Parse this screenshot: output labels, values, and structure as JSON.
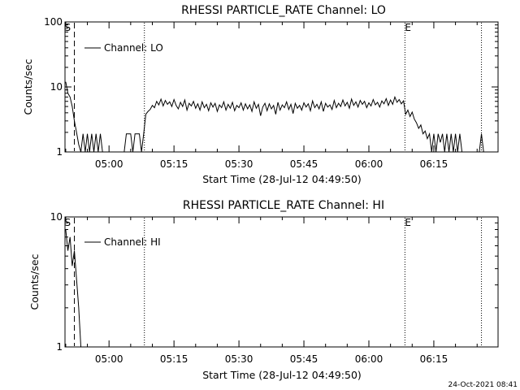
{
  "chart_data": [
    {
      "type": "line",
      "title": "RHESSI PARTICLE_RATE Channel: LO",
      "xlabel": "Start Time (28-Jul-12 04:49:50)",
      "ylabel": "Counts/sec",
      "yscale": "log",
      "ylim": [
        1,
        100
      ],
      "xlim": [
        "04:49:50",
        "06:29:50"
      ],
      "x_ticks": [
        "05:00",
        "05:15",
        "05:30",
        "05:45",
        "06:00",
        "06:15"
      ],
      "y_ticks": [
        "1",
        "10",
        "100"
      ],
      "legend": {
        "position": "top-left",
        "entries": [
          "Channel: LO"
        ]
      },
      "markers": [
        {
          "label": "S",
          "time": "04:52:00",
          "style": "dashed"
        },
        {
          "label": "",
          "time": "05:08:10",
          "style": "dotted"
        },
        {
          "label": "E",
          "time": "06:08:20",
          "style": "dotted"
        },
        {
          "label": "",
          "time": "06:26:00",
          "style": "dotted"
        }
      ],
      "series": [
        {
          "name": "Channel: LO",
          "points": [
            [
              "04:50:00",
              12
            ],
            [
              "04:50:30",
              8
            ],
            [
              "04:51:00",
              7
            ],
            [
              "04:51:30",
              5
            ],
            [
              "04:52:00",
              3
            ],
            [
              "04:52:30",
              2
            ],
            [
              "04:53:00",
              1.3
            ],
            [
              "04:53:30",
              1
            ],
            [
              "04:54:00",
              1.9
            ],
            [
              "04:54:30",
              1
            ],
            [
              "04:55:00",
              1.9
            ],
            [
              "04:55:30",
              1
            ],
            [
              "04:56:00",
              1.9
            ],
            [
              "04:56:30",
              1
            ],
            [
              "04:57:00",
              1.9
            ],
            [
              "04:57:30",
              1
            ],
            [
              "04:58:00",
              1.9
            ],
            [
              "04:58:30",
              1
            ],
            [
              "05:03:30",
              1
            ],
            [
              "05:04:00",
              1.9
            ],
            [
              "05:05:00",
              1.9
            ],
            [
              "05:05:30",
              1
            ],
            [
              "05:06:00",
              1.9
            ],
            [
              "05:07:00",
              1.9
            ],
            [
              "05:07:30",
              1
            ],
            [
              "05:08:00",
              1.9
            ],
            [
              "05:08:30",
              3.8
            ],
            [
              "05:09:00",
              4.2
            ],
            [
              "05:09:30",
              4.5
            ],
            [
              "05:10:00",
              5.2
            ],
            [
              "05:10:30",
              4.8
            ],
            [
              "05:11:00",
              6
            ],
            [
              "05:11:30",
              5.3
            ],
            [
              "05:12:00",
              6.5
            ],
            [
              "05:12:30",
              5.1
            ],
            [
              "05:13:00",
              6.2
            ],
            [
              "05:13:30",
              5.4
            ],
            [
              "05:14:00",
              5.9
            ],
            [
              "05:14:30",
              5
            ],
            [
              "05:15:00",
              6.4
            ],
            [
              "05:15:30",
              5.2
            ],
            [
              "05:16:00",
              4.6
            ],
            [
              "05:16:30",
              5.8
            ],
            [
              "05:17:00",
              5
            ],
            [
              "05:17:30",
              6.3
            ],
            [
              "05:18:00",
              4.4
            ],
            [
              "05:18:30",
              5.6
            ],
            [
              "05:19:00",
              5.1
            ],
            [
              "05:19:30",
              6
            ],
            [
              "05:20:00",
              4.7
            ],
            [
              "05:20:30",
              5.5
            ],
            [
              "05:21:00",
              4.4
            ],
            [
              "05:21:30",
              5.9
            ],
            [
              "05:22:00",
              4.8
            ],
            [
              "05:22:30",
              5.4
            ],
            [
              "05:23:00",
              4.3
            ],
            [
              "05:23:30",
              5.7
            ],
            [
              "05:24:00",
              4.9
            ],
            [
              "05:24:30",
              5.6
            ],
            [
              "05:25:00",
              4.2
            ],
            [
              "05:25:30",
              5.3
            ],
            [
              "05:26:00",
              4.8
            ],
            [
              "05:26:30",
              5.9
            ],
            [
              "05:27:00",
              4.4
            ],
            [
              "05:27:30",
              5.4
            ],
            [
              "05:28:00",
              4.7
            ],
            [
              "05:28:30",
              5.8
            ],
            [
              "05:29:00",
              4.3
            ],
            [
              "05:29:30",
              5.2
            ],
            [
              "05:30:00",
              4.8
            ],
            [
              "05:30:30",
              5.7
            ],
            [
              "05:31:00",
              4.4
            ],
            [
              "05:31:30",
              5.5
            ],
            [
              "05:32:00",
              4.6
            ],
            [
              "05:32:30",
              5.3
            ],
            [
              "05:33:00",
              4.2
            ],
            [
              "05:33:30",
              5.9
            ],
            [
              "05:34:00",
              4.7
            ],
            [
              "05:34:30",
              5.4
            ],
            [
              "05:35:00",
              3.6
            ],
            [
              "05:35:30",
              4.9
            ],
            [
              "05:36:00",
              5.6
            ],
            [
              "05:36:30",
              4.3
            ],
            [
              "05:37:00",
              5.5
            ],
            [
              "05:37:30",
              4.6
            ],
            [
              "05:38:00",
              5.2
            ],
            [
              "05:38:30",
              3.8
            ],
            [
              "05:39:00",
              5.8
            ],
            [
              "05:39:30",
              4.4
            ],
            [
              "05:40:00",
              5.3
            ],
            [
              "05:40:30",
              4.8
            ],
            [
              "05:41:00",
              5.9
            ],
            [
              "05:41:30",
              4.5
            ],
            [
              "05:42:00",
              5.4
            ],
            [
              "05:42:30",
              3.9
            ],
            [
              "05:43:00",
              5.6
            ],
            [
              "05:43:30",
              4.7
            ],
            [
              "05:44:00",
              5.2
            ],
            [
              "05:44:30",
              4.4
            ],
            [
              "05:45:00",
              5.7
            ],
            [
              "05:45:30",
              4.9
            ],
            [
              "05:46:00",
              5.5
            ],
            [
              "05:46:30",
              4.3
            ],
            [
              "05:47:00",
              6.1
            ],
            [
              "05:47:30",
              4.8
            ],
            [
              "05:48:00",
              5.4
            ],
            [
              "05:48:30",
              4.6
            ],
            [
              "05:49:00",
              5.9
            ],
            [
              "05:49:30",
              4.2
            ],
            [
              "05:50:00",
              5.6
            ],
            [
              "05:50:30",
              4.9
            ],
            [
              "05:51:00",
              5.3
            ],
            [
              "05:51:30",
              4.5
            ],
            [
              "05:52:00",
              6.2
            ],
            [
              "05:52:30",
              4.8
            ],
            [
              "05:53:00",
              5.6
            ],
            [
              "05:53:30",
              5
            ],
            [
              "05:54:00",
              6.3
            ],
            [
              "05:54:30",
              5.1
            ],
            [
              "05:55:00",
              5.8
            ],
            [
              "05:55:30",
              4.7
            ],
            [
              "05:56:00",
              6.5
            ],
            [
              "05:56:30",
              5.2
            ],
            [
              "05:57:00",
              5.9
            ],
            [
              "05:57:30",
              4.9
            ],
            [
              "05:58:00",
              6.2
            ],
            [
              "05:58:30",
              5.4
            ],
            [
              "05:59:00",
              6
            ],
            [
              "05:59:30",
              4.8
            ],
            [
              "06:00:00",
              5.7
            ],
            [
              "06:00:30",
              5.1
            ],
            [
              "06:01:00",
              6.4
            ],
            [
              "06:01:30",
              5.3
            ],
            [
              "06:02:00",
              5.8
            ],
            [
              "06:02:30",
              4.9
            ],
            [
              "06:03:00",
              6.1
            ],
            [
              "06:03:30",
              5.5
            ],
            [
              "06:04:00",
              6.6
            ],
            [
              "06:04:30",
              5.2
            ],
            [
              "06:05:00",
              6.3
            ],
            [
              "06:05:30",
              5.4
            ],
            [
              "06:06:00",
              7
            ],
            [
              "06:06:30",
              5.8
            ],
            [
              "06:07:00",
              6.4
            ],
            [
              "06:07:30",
              5.5
            ],
            [
              "06:08:00",
              6.1
            ],
            [
              "06:08:30",
              3.8
            ],
            [
              "06:09:00",
              4.4
            ],
            [
              "06:09:30",
              3.5
            ],
            [
              "06:10:00",
              4.1
            ],
            [
              "06:10:30",
              3.2
            ],
            [
              "06:11:00",
              2.8
            ],
            [
              "06:11:30",
              2.3
            ],
            [
              "06:12:00",
              2.6
            ],
            [
              "06:12:30",
              1.9
            ],
            [
              "06:13:00",
              2.1
            ],
            [
              "06:13:30",
              1.6
            ],
            [
              "06:14:00",
              1.9
            ],
            [
              "06:14:30",
              1
            ],
            [
              "06:15:00",
              1.9
            ],
            [
              "06:15:30",
              1
            ],
            [
              "06:16:00",
              1.9
            ],
            [
              "06:16:30",
              1.4
            ],
            [
              "06:17:00",
              1.9
            ],
            [
              "06:17:30",
              1
            ],
            [
              "06:18:00",
              1.9
            ],
            [
              "06:18:30",
              1
            ],
            [
              "06:19:00",
              1.9
            ],
            [
              "06:19:30",
              1
            ],
            [
              "06:20:00",
              1.9
            ],
            [
              "06:20:30",
              1
            ],
            [
              "06:21:00",
              1.9
            ],
            [
              "06:21:30",
              1
            ],
            [
              "06:25:30",
              1
            ],
            [
              "06:26:00",
              1.9
            ],
            [
              "06:26:30",
              1
            ]
          ]
        }
      ]
    },
    {
      "type": "line",
      "title": "RHESSI PARTICLE_RATE Channel: HI",
      "xlabel": "Start Time (28-Jul-12 04:49:50)",
      "ylabel": "Counts/sec",
      "yscale": "log",
      "ylim": [
        1,
        10
      ],
      "xlim": [
        "04:49:50",
        "06:29:50"
      ],
      "x_ticks": [
        "05:00",
        "05:15",
        "05:30",
        "05:45",
        "06:00",
        "06:15"
      ],
      "y_ticks": [
        "1",
        "10"
      ],
      "legend": {
        "position": "top-left",
        "entries": [
          "Channel: HI"
        ]
      },
      "markers": [
        {
          "label": "S",
          "time": "04:52:00",
          "style": "dashed"
        },
        {
          "label": "",
          "time": "05:08:10",
          "style": "dotted"
        },
        {
          "label": "E",
          "time": "06:08:20",
          "style": "dotted"
        },
        {
          "label": "",
          "time": "06:26:00",
          "style": "dotted"
        }
      ],
      "series": [
        {
          "name": "Channel: HI",
          "points": [
            [
              "04:50:00",
              8
            ],
            [
              "04:50:30",
              5.5
            ],
            [
              "04:51:00",
              7
            ],
            [
              "04:51:30",
              4.2
            ],
            [
              "04:52:00",
              5.5
            ],
            [
              "04:53:00",
              2
            ],
            [
              "04:53:30",
              1
            ]
          ]
        }
      ]
    }
  ],
  "footer": {
    "timestamp": "24-Oct-2021 08:41"
  }
}
